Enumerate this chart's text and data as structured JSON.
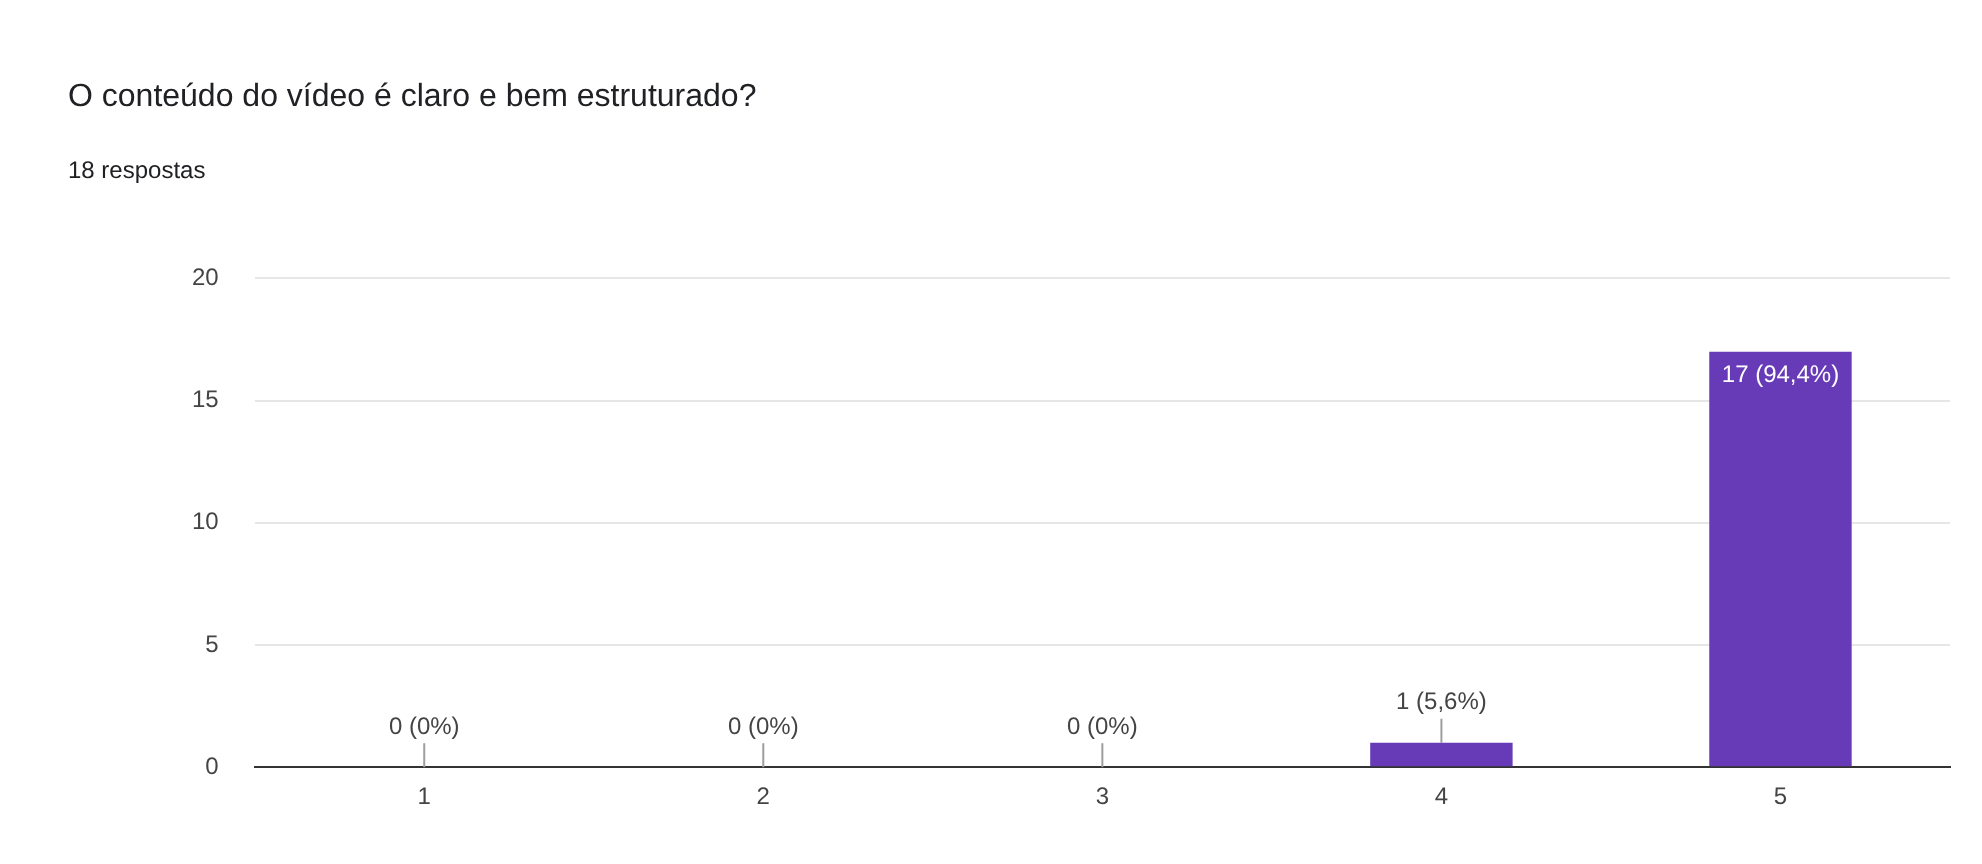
{
  "chart_data": {
    "type": "bar",
    "title": "O conteúdo do vídeo é claro e bem estruturado?",
    "subtitle": "18 respostas",
    "categories": [
      "1",
      "2",
      "3",
      "4",
      "5"
    ],
    "values": [
      0,
      0,
      0,
      1,
      17
    ],
    "value_labels": [
      "0 (0%)",
      "0 (0%)",
      "0 (0%)",
      "1 (5,6%)",
      "17 (94,4%)"
    ],
    "color": "#673ab7",
    "ylim": [
      0,
      20
    ],
    "yticks": [
      0,
      5,
      10,
      15,
      20
    ],
    "grid": "y",
    "legend": false
  }
}
